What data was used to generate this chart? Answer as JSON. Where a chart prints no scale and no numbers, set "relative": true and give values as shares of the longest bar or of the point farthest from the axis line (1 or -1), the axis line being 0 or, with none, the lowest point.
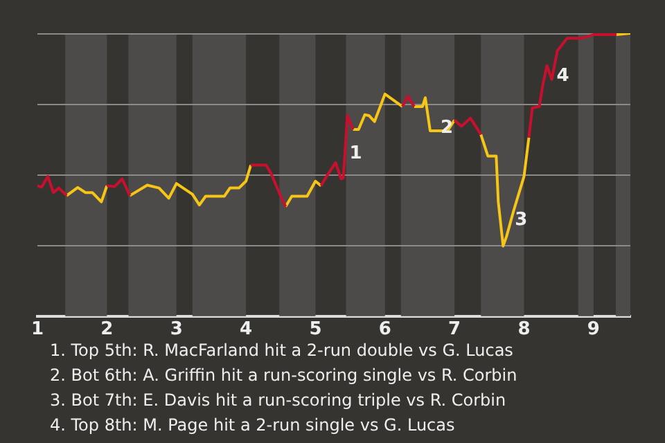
{
  "chart_data": {
    "type": "line",
    "relative": true,
    "x": [
      1.0,
      1.06,
      1.15,
      1.23,
      1.31,
      1.42,
      1.58,
      1.69,
      1.79,
      1.92,
      2.0,
      2.11,
      2.22,
      2.33,
      2.58,
      2.75,
      2.89,
      3.0,
      3.23,
      3.33,
      3.42,
      3.69,
      3.77,
      3.9,
      4.0,
      4.07,
      4.29,
      4.36,
      4.5,
      4.57,
      4.66,
      4.88,
      5.0,
      5.08,
      5.17,
      5.29,
      5.37,
      5.4,
      5.46,
      5.54,
      5.62,
      5.71,
      5.77,
      5.85,
      6.0,
      6.25,
      6.33,
      6.42,
      6.54,
      6.58,
      6.65,
      6.9,
      7.0,
      7.1,
      7.23,
      7.38,
      7.48,
      7.6,
      7.63,
      7.7,
      7.75,
      7.85,
      8.0,
      8.07,
      8.12,
      8.22,
      8.27,
      8.33,
      8.4,
      8.48,
      8.62,
      8.82,
      9.0,
      9.33,
      9.53
    ],
    "series": [
      {
        "color": "#c8102e",
        "values": [
          0.461,
          0.456,
          0.494,
          0.437,
          0.453,
          0.426,
          null,
          null,
          null,
          null,
          0.461,
          0.458,
          0.485,
          0.426,
          null,
          null,
          null,
          null,
          null,
          null,
          null,
          null,
          null,
          null,
          null,
          0.534,
          0.534,
          0.505,
          0.424,
          0.387,
          null,
          null,
          null,
          0.461,
          0.498,
          0.542,
          0.485,
          0.489,
          0.709,
          0.66,
          null,
          null,
          null,
          null,
          null,
          0.741,
          0.777,
          0.741,
          null,
          null,
          null,
          null,
          0.693,
          0.671,
          0.7,
          0.642,
          null,
          null,
          null,
          null,
          null,
          null,
          null,
          0.631,
          0.736,
          0.741,
          0.817,
          0.885,
          0.837,
          0.938,
          0.982,
          0.982,
          0.995,
          0.995,
          null
        ]
      },
      {
        "color": "#f5c518",
        "values": [
          null,
          null,
          null,
          null,
          null,
          0.426,
          0.455,
          0.437,
          0.437,
          0.404,
          0.461,
          null,
          null,
          0.426,
          0.463,
          0.453,
          0.417,
          0.469,
          0.431,
          0.393,
          0.424,
          0.424,
          0.453,
          0.453,
          0.477,
          0.534,
          null,
          null,
          null,
          0.387,
          0.424,
          0.424,
          0.477,
          0.461,
          null,
          null,
          null,
          null,
          null,
          0.66,
          0.66,
          0.712,
          0.709,
          0.688,
          0.785,
          0.741,
          null,
          0.741,
          0.741,
          0.772,
          0.655,
          0.655,
          0.693,
          null,
          null,
          0.642,
          0.566,
          0.566,
          0.404,
          0.248,
          0.283,
          0.372,
          0.494,
          0.631,
          null,
          null,
          null,
          null,
          null,
          null,
          null,
          null,
          null,
          0.995,
          1
        ]
      }
    ],
    "xlim": [
      1,
      9.53
    ],
    "xticks": [
      1,
      2,
      3,
      4,
      5,
      6,
      7,
      8,
      9
    ],
    "bands": [
      {
        "axis": "x",
        "from": 1.4,
        "to": 2,
        "color": "#4d4b49"
      },
      {
        "axis": "x",
        "from": 2.31,
        "to": 3,
        "color": "#4d4b49"
      },
      {
        "axis": "x",
        "from": 3.23,
        "to": 4,
        "color": "#4d4b49"
      },
      {
        "axis": "x",
        "from": 4.48,
        "to": 5,
        "color": "#4d4b49"
      },
      {
        "axis": "x",
        "from": 5.44,
        "to": 6,
        "color": "#4d4b49"
      },
      {
        "axis": "x",
        "from": 6.23,
        "to": 7,
        "color": "#4d4b49"
      },
      {
        "axis": "x",
        "from": 7.38,
        "to": 8,
        "color": "#4d4b49"
      },
      {
        "axis": "x",
        "from": 8.78,
        "to": 9,
        "color": "#4d4b49"
      },
      {
        "axis": "x",
        "from": 9.32,
        "to": 9.53,
        "color": "#4d4b49"
      }
    ],
    "grid": "y",
    "legend": false,
    "marker": "none",
    "line_style": "solid",
    "annotations": [
      {
        "text": "1",
        "x": 5.42,
        "y": 0.563
      },
      {
        "text": "2",
        "x": 6.73,
        "y": 0.655
      },
      {
        "text": "3",
        "x": 7.8,
        "y": 0.33
      },
      {
        "text": "4",
        "x": 8.4,
        "y": 0.837
      },
      "1. Top 5th: R. MacFarland hit a 2-run double vs G. Lucas",
      "2. Bot 6th: A. Griffin hit a run-scoring single vs R. Corbin",
      "3. Bot 7th: E. Davis hit a run-scoring triple vs R. Corbin",
      "4. Top 8th: M. Page hit a 2-run single vs G. Lucas"
    ]
  }
}
